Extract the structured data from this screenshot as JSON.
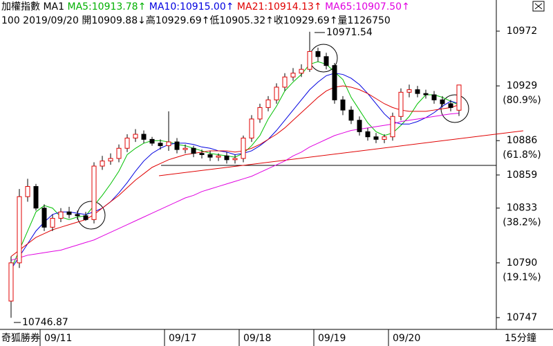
{
  "chart_data": {
    "type": "candlestick",
    "header_items": [
      {
        "text": "加權指數",
        "color": "#000000"
      },
      {
        "text": "MA1",
        "color": "#000000"
      },
      {
        "text": "MA5:10913.78↑",
        "color": "#00b000"
      },
      {
        "text": "MA10:10915.00↑",
        "color": "#0000e0"
      },
      {
        "text": "MA21:10914.13↑",
        "color": "#e00000"
      },
      {
        "text": "MA65:10907.50↑",
        "color": "#e000e0"
      }
    ],
    "info_line": "100 2019/09/20 開10909.88↓高10929.69↑低10905.32↑收10929.69↑量1126750",
    "high_label": "10971.54",
    "low_label": "10746.87",
    "software_label": "奇狐勝券",
    "period_label": "15分鐘",
    "categories": [
      null,
      null,
      null,
      null,
      "09/11",
      null,
      null,
      null,
      null,
      null,
      null,
      null,
      null,
      null,
      null,
      null,
      null,
      null,
      null,
      "09/17",
      null,
      null,
      null,
      null,
      null,
      null,
      null,
      null,
      "09/18",
      null,
      null,
      null,
      null,
      null,
      null,
      null,
      null,
      "09/19",
      null,
      null,
      null,
      null,
      null,
      null,
      null,
      null,
      "09/20",
      null,
      null,
      null,
      null,
      null,
      null,
      null,
      null
    ],
    "open": [
      10760,
      10790,
      10842,
      10850,
      10833,
      10818,
      10825,
      10830,
      10828,
      10827,
      10824,
      10866,
      10870,
      10872,
      10880,
      10888,
      10891,
      10887,
      10884,
      10882,
      10885,
      10879,
      10880,
      10876,
      10875,
      10873,
      10874,
      10871,
      10872,
      10888,
      10903,
      10912,
      10918,
      10928,
      10936,
      10939,
      10942,
      10956,
      10952,
      10945,
      10918,
      10910,
      10902,
      10893,
      10889,
      10887,
      10889,
      10905,
      10924,
      10926,
      10923,
      10922,
      10918,
      10915,
      10909.88
    ],
    "high": [
      10795,
      10848,
      10856,
      10852,
      10836,
      10828,
      10833,
      10834,
      10831,
      10830,
      10869,
      10874,
      10876,
      10883,
      10891,
      10895,
      10894,
      10889,
      10887,
      10909,
      10888,
      10883,
      10882,
      10879,
      10878,
      10876,
      10877,
      10875,
      10890,
      10906,
      10915,
      10921,
      10931,
      10939,
      10943,
      10946,
      10971.54,
      10959,
      10955,
      10947,
      10921,
      10913,
      10905,
      10896,
      10892,
      10891,
      10908,
      10927,
      10930,
      10929,
      10926,
      10925,
      10921,
      10918,
      10929.69
    ],
    "low": [
      10746.87,
      10786,
      10838,
      10831,
      10815,
      10815,
      10822,
      10825,
      10824,
      10823,
      10821,
      10863,
      10867,
      10869,
      10877,
      10885,
      10884,
      10882,
      10879,
      10878,
      10876,
      10876,
      10873,
      10872,
      10870,
      10870,
      10868,
      10868,
      10869,
      10885,
      10900,
      10909,
      10915,
      10925,
      10933,
      10936,
      10940,
      10948,
      10942,
      10915,
      10906,
      10899,
      10890,
      10886,
      10884,
      10884,
      10886,
      10902,
      10920,
      10920,
      10919,
      10915,
      10912,
      10909,
      10905.32
    ],
    "close": [
      10790,
      10842,
      10850,
      10833,
      10818,
      10825,
      10830,
      10828,
      10827,
      10824,
      10866,
      10870,
      10872,
      10880,
      10888,
      10891,
      10887,
      10884,
      10882,
      10885,
      10879,
      10880,
      10876,
      10875,
      10873,
      10874,
      10871,
      10872,
      10888,
      10903,
      10912,
      10918,
      10928,
      10936,
      10939,
      10942,
      10956,
      10952,
      10945,
      10918,
      10910,
      10902,
      10893,
      10889,
      10887,
      10889,
      10905,
      10924,
      10926,
      10923,
      10922,
      10918,
      10915,
      10912,
      10929.69
    ],
    "series": [
      {
        "name": "MA5",
        "color": "#00c000",
        "values": [
          10785,
          10800,
          10815,
          10830,
          10835,
          10833,
          10826,
          10824,
          10826,
          10827,
          10835,
          10843,
          10852,
          10862,
          10875,
          10880,
          10884,
          10886,
          10886,
          10885,
          10883,
          10882,
          10880,
          10878,
          10876,
          10875,
          10874,
          10873,
          10876,
          10882,
          10890,
          10903,
          10913,
          10925,
          10932,
          10938,
          10946,
          10948,
          10946,
          10940,
          10934,
          10920,
          10910,
          10900,
          10893,
          10890,
          10892,
          10898,
          10905,
          10915,
          10922,
          10922,
          10920,
          10917,
          10913.78
        ]
      },
      {
        "name": "MA10",
        "color": "#0000e0",
        "values": [
          10785,
          10795,
          10805,
          10815,
          10822,
          10828,
          10830,
          10830,
          10829,
          10828,
          10830,
          10833,
          10838,
          10845,
          10853,
          10862,
          10870,
          10876,
          10880,
          10883,
          10884,
          10884,
          10883,
          10881,
          10880,
          10878,
          10877,
          10875,
          10876,
          10878,
          10882,
          10887,
          10894,
          10902,
          10910,
          10918,
          10926,
          10932,
          10937,
          10939,
          10938,
          10935,
          10930,
          10923,
          10915,
          10907,
          10901,
          10899,
          10899,
          10901,
          10904,
          10908,
          10913,
          10917,
          10915
        ]
      },
      {
        "name": "MA21",
        "color": "#e00000",
        "values": [
          10795,
          10800,
          10805,
          10810,
          10813,
          10816,
          10818,
          10820,
          10822,
          10824,
          10828,
          10833,
          10838,
          10843,
          10849,
          10855,
          10860,
          10865,
          10868,
          10871,
          10873,
          10875,
          10876,
          10877,
          10878,
          10878,
          10878,
          10877,
          10878,
          10880,
          10883,
          10887,
          10891,
          10896,
          10902,
          10908,
          10914,
          10920,
          10925,
          10928,
          10929,
          10928,
          10926,
          10923,
          10919,
          10915,
          10912,
          10910,
          10909,
          10909,
          10909,
          10910,
          10911,
          10912,
          10914.13
        ]
      },
      {
        "name": "MA65",
        "color": "#e000e0",
        "values": [
          10792,
          10794,
          10796,
          10797,
          10798,
          10799,
          10800,
          10802,
          10804,
          10806,
          10808,
          10811,
          10814,
          10817,
          10820,
          10823,
          10826,
          10829,
          10832,
          10835,
          10838,
          10841,
          10843,
          10846,
          10848,
          10850,
          10852,
          10854,
          10856,
          10858,
          10861,
          10864,
          10867,
          10870,
          10874,
          10877,
          10881,
          10884,
          10887,
          10890,
          10892,
          10894,
          10895,
          10896,
          10897,
          10898,
          10899,
          10901,
          10902,
          10903,
          10904,
          10905,
          10906,
          10907,
          10907.5
        ]
      }
    ],
    "ylim": [
      10741,
      10984.5
    ],
    "yticks": [
      10747,
      10790,
      10833,
      10859,
      10886,
      10929,
      10972
    ],
    "fib_labels": [
      {
        "value": 10929,
        "label": "(80.9%)"
      },
      {
        "value": 10886,
        "label": "(61.8%)"
      },
      {
        "value": 10833,
        "label": "(38.2%)"
      },
      {
        "value": 10790,
        "label": "(19.1%)"
      }
    ]
  }
}
